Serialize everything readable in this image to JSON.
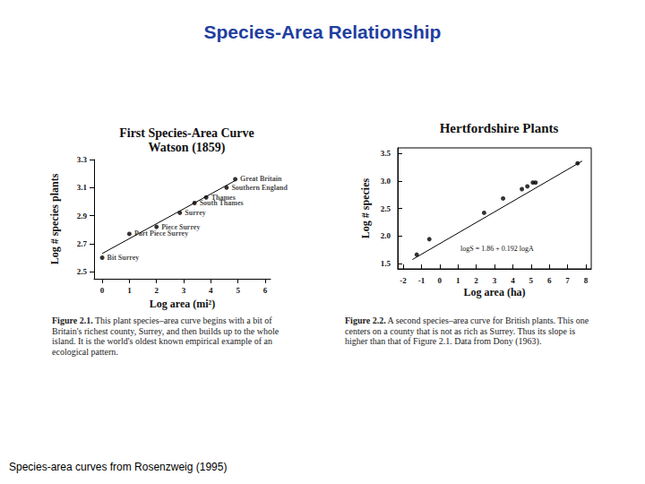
{
  "title": "Species-Area Relationship",
  "source": "Species-area curves from Rosenzweig (1995)",
  "chart_data": [
    {
      "type": "scatter",
      "title": "First Species-Area Curve",
      "subtitle": "Watson (1859)",
      "x_label": "Log area (mi²)",
      "y_label": "Log # species plants",
      "caption_label": "Figure 2.1.",
      "caption": "This plant species–area curve begins with a bit of Britain's richest county, Surrey, and then builds up to the whole island. It is the world's oldest known empirical example of an ecological pattern.",
      "xlim": [
        -0.3,
        6.2
      ],
      "xticks": [
        0,
        1,
        2,
        3,
        4,
        5,
        6
      ],
      "ylim": [
        2.45,
        3.3
      ],
      "yticks": [
        2.5,
        2.7,
        2.9,
        3.1,
        3.3
      ],
      "grid": false,
      "series": [
        {
          "type": "scatter",
          "marker": "circle",
          "color": "#000000",
          "x": [
            0.0,
            1.0,
            2.0,
            2.86,
            3.4,
            3.83,
            4.58,
            4.9
          ],
          "values": [
            2.6,
            2.77,
            2.82,
            2.92,
            2.99,
            3.03,
            3.1,
            3.16
          ],
          "point_labels": [
            "Bit Surrey",
            "Part Piece Surrey",
            "Piece Surrey",
            "Surrey",
            "South Thames",
            "Thames",
            "Southern England",
            "Great Britain"
          ]
        },
        {
          "type": "line",
          "color": "#000000",
          "line_style": "solid",
          "x": [
            0.0,
            4.9
          ],
          "values": [
            2.63,
            3.15
          ]
        }
      ]
    },
    {
      "type": "scatter",
      "title": "Hertfordshire Plants",
      "x_label": "Log area (ha)",
      "y_label": "Log # species",
      "annotation": "logS = 1.86 + 0.192 logA",
      "caption_label": "Figure 2.2.",
      "caption": "A second species–area curve for British plants. This one centers on a county that is not as rich as Surrey. Thus its slope is higher than that of Figure 2.1. Data from Dony (1963).",
      "xlim": [
        -2.3,
        8.3
      ],
      "xticks": [
        -2,
        -1,
        0,
        1,
        2,
        3,
        4,
        5,
        6,
        7,
        8
      ],
      "ylim": [
        1.4,
        3.6
      ],
      "yticks": [
        1.5,
        {
          "value": 2,
          "label": "2.0"
        },
        2.5,
        {
          "value": 3,
          "label": "3.0"
        },
        3.5
      ],
      "grid": false,
      "series": [
        {
          "type": "scatter",
          "marker": "circle",
          "color": "#000000",
          "x": [
            -1.26,
            -0.57,
            2.43,
            3.47,
            4.5,
            4.8,
            5.1,
            5.25,
            7.55
          ],
          "values": [
            1.66,
            1.94,
            2.42,
            2.68,
            2.85,
            2.9,
            2.97,
            2.97,
            3.32
          ]
        },
        {
          "type": "line",
          "color": "#000000",
          "line_style": "solid",
          "x": [
            -1.5,
            7.8
          ],
          "values": [
            1.57,
            3.36
          ]
        }
      ]
    }
  ]
}
